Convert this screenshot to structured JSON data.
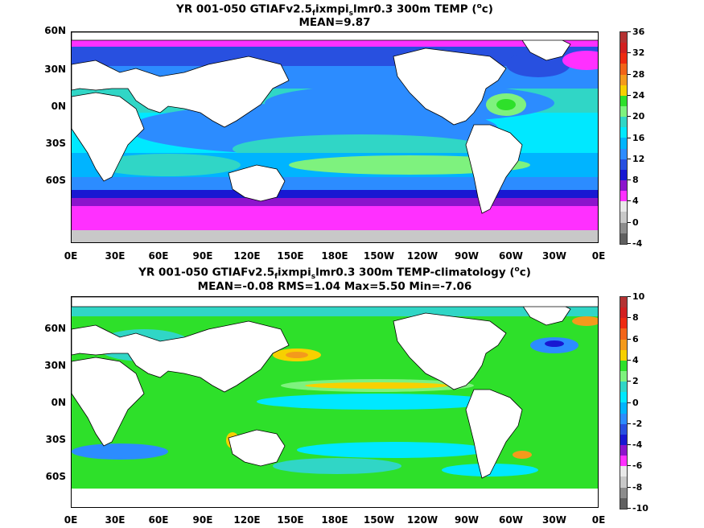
{
  "map1": {
    "title_prefix": "YR 001-050 GTIAFv2.5",
    "title_sub": "f",
    "title_mid": "ixmpi",
    "title_sub2": "s",
    "title_suffix": "lmr0.3 300m TEMP (",
    "title_sup": "o",
    "title_unit": "c)",
    "stats": "MEAN=9.87",
    "colorbar": {
      "labels": [
        "36",
        "32",
        "28",
        "24",
        "20",
        "16",
        "12",
        "8",
        "4",
        "0",
        "-4"
      ],
      "colors": [
        "#b43232",
        "#d22020",
        "#ee2a10",
        "#f26418",
        "#f49a1c",
        "#f7d000",
        "#2ee02a",
        "#7ef27e",
        "#30d6c6",
        "#00e8ff",
        "#00b4ff",
        "#2c8cff",
        "#2850e0",
        "#1818d2",
        "#8c14cc",
        "#ff30ff",
        "#e8e8e8",
        "#c8c8c8",
        "#8c8c8c",
        "#606060"
      ]
    }
  },
  "map2": {
    "title_prefix": "YR 001-050 GTIAFv2.5",
    "title_sub": "f",
    "title_mid": "ixmpi",
    "title_sub2": "s",
    "title_suffix": "lmr0.3 300m TEMP-climatology (",
    "title_sup": "o",
    "title_unit": "c)",
    "stats": "MEAN=-0.08   RMS=1.04   Max=5.50   Min=-7.06",
    "colorbar": {
      "labels": [
        "10",
        "8",
        "6",
        "4",
        "2",
        "0",
        "-2",
        "-4",
        "-6",
        "-8",
        "-10"
      ],
      "colors": [
        "#b43232",
        "#d22020",
        "#ee2a10",
        "#f26418",
        "#f49a1c",
        "#f7d000",
        "#2ee02a",
        "#7ef27e",
        "#30d6c6",
        "#00e8ff",
        "#00b4ff",
        "#2c8cff",
        "#2850e0",
        "#1818d2",
        "#8c14cc",
        "#ff30ff",
        "#e8e8e8",
        "#c8c8c8",
        "#8c8c8c",
        "#606060"
      ]
    }
  },
  "axes": {
    "lat_labels": [
      "60N",
      "30N",
      "0N",
      "30S",
      "60S"
    ],
    "lon_labels": [
      "0E",
      "30E",
      "60E",
      "90E",
      "120E",
      "150E",
      "180E",
      "150W",
      "120W",
      "90W",
      "60W",
      "30W",
      "0E"
    ]
  }
}
